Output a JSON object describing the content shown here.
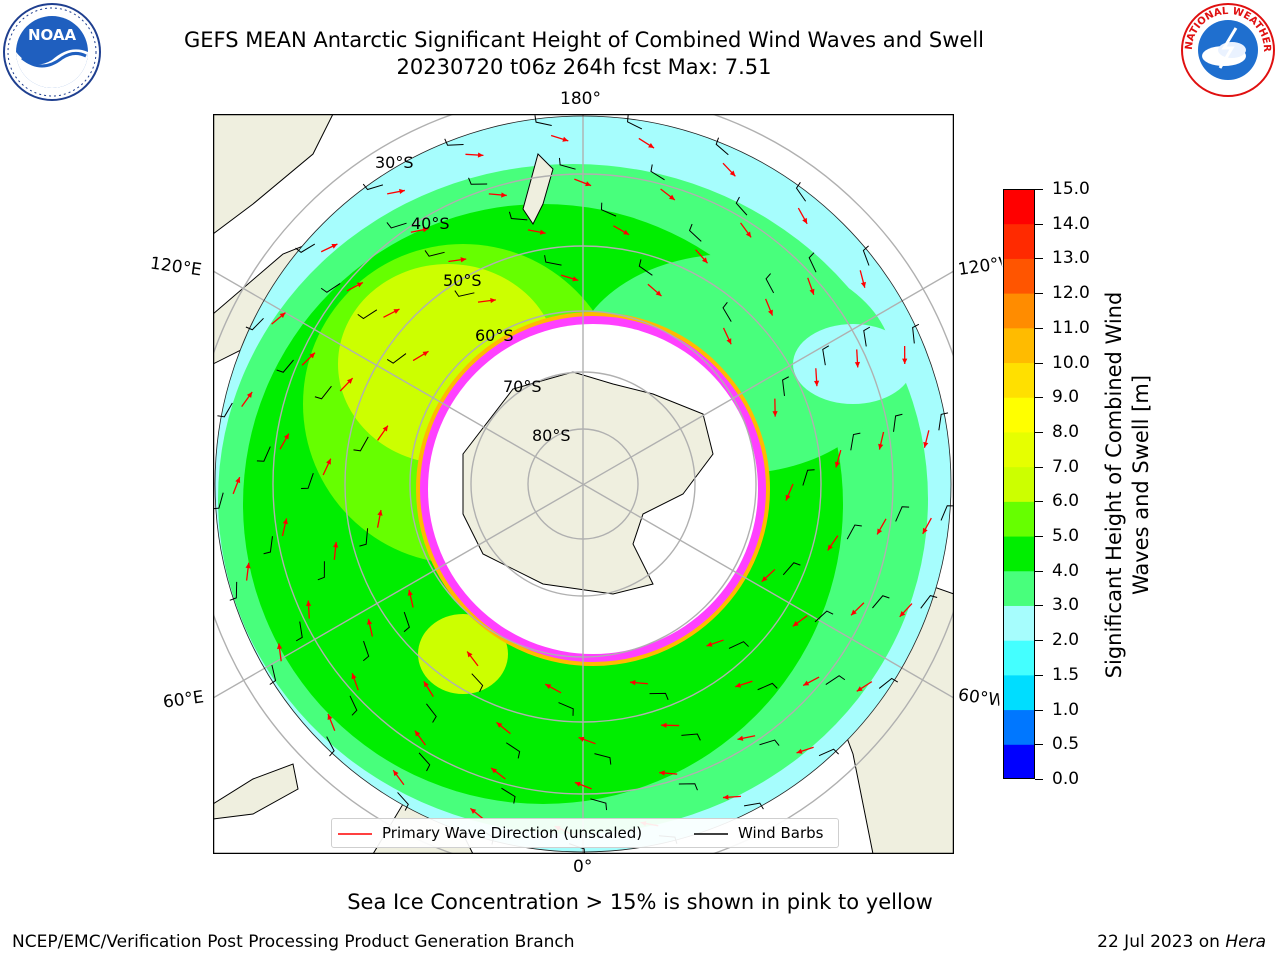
{
  "header": {
    "title_line1": "GEFS MEAN Antarctic Significant Height of Combined Wind Waves and Swell",
    "title_line2": "20230720 t06z 264h fcst   Max: 7.51"
  },
  "logos": {
    "left": {
      "name": "noaa-logo",
      "text": "NOAA"
    },
    "right": {
      "name": "nws-logo",
      "text": "NATIONAL WEATHER SERVICE"
    }
  },
  "map": {
    "projection": "south-polar-stereographic",
    "lon_labels": {
      "top": "180°",
      "bottom": "0°",
      "left_upper": "120°E",
      "left_lower": "60°E",
      "right_upper": "120°W",
      "right_lower": "60°W"
    },
    "lat_labels": [
      "30°S",
      "40°S",
      "50°S",
      "60°S",
      "70°S",
      "80°S"
    ],
    "colors": {
      "land": "#efefdf",
      "ocean_low": "#a6fdfd",
      "ice_edge": "#ff40ff"
    }
  },
  "legend": {
    "wave_direction": "Primary Wave Direction (unscaled)",
    "wind_barbs": "Wind Barbs"
  },
  "colorbar": {
    "label": "Significant Height of Combined Wind Waves and Swell [m]",
    "ticks": [
      "0.0",
      "0.5",
      "1.0",
      "1.5",
      "2.0",
      "3.0",
      "4.0",
      "5.0",
      "6.0",
      "7.0",
      "8.0",
      "9.0",
      "10.0",
      "11.0",
      "12.0",
      "13.0",
      "14.0",
      "15.0"
    ],
    "colors": [
      "#0000ff",
      "#0077ff",
      "#00ddff",
      "#44ffff",
      "#a6fdfd",
      "#48ff7c",
      "#00ee00",
      "#66ff00",
      "#ccff00",
      "#e6ff00",
      "#ffff00",
      "#ffe000",
      "#ffbb00",
      "#ff8c00",
      "#ff5500",
      "#ff2a00",
      "#ff0000"
    ]
  },
  "footer": {
    "sea_ice_note": "Sea Ice Concentration > 15% is shown in pink to yellow",
    "credit_left": "NCEP/EMC/Verification Post Processing Product Generation Branch",
    "date": "22 Jul 2023 on ",
    "machine": "Hera"
  }
}
